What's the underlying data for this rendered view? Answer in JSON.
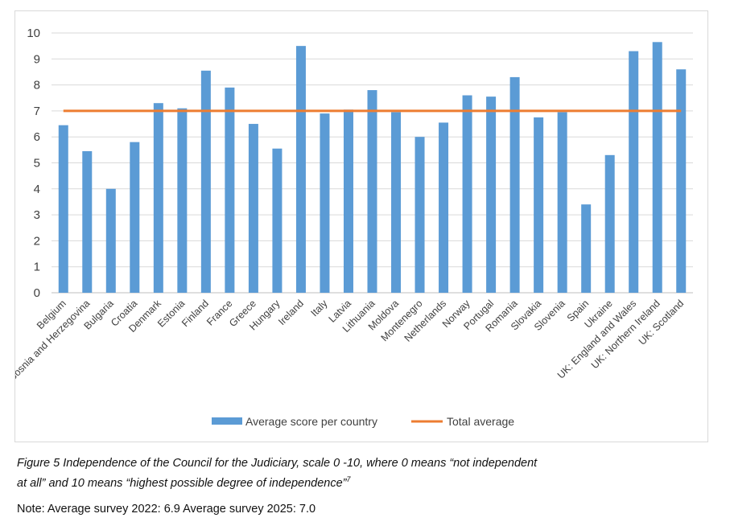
{
  "chart_data": {
    "type": "bar",
    "title": "",
    "xlabel": "",
    "ylabel": "",
    "ylim": [
      0,
      10
    ],
    "yticks": [
      "0",
      "1",
      "2",
      "3",
      "4",
      "5",
      "6",
      "7",
      "8",
      "9",
      "10"
    ],
    "grid": true,
    "legend_position": "bottom",
    "categories": [
      "Belgium",
      "Bosnia and Herzegovina",
      "Bulgaria",
      "Croatia",
      "Denmark",
      "Estonia",
      "Finland",
      "France",
      "Greece",
      "Hungary",
      "Ireland",
      "Italy",
      "Latvia",
      "Lithuania",
      "Moldova",
      "Montenegro",
      "Netherlands",
      "Norway",
      "Portugal",
      "Romania",
      "Slovakia",
      "Slovenia",
      "Spain",
      "Ukraine",
      "UK: England and Wales",
      "UK: Northern Ireland",
      "UK: Scotland"
    ],
    "series": [
      {
        "name": "Average score per country",
        "type": "bar",
        "color": "#5b9bd5",
        "values": [
          6.45,
          5.45,
          4.0,
          5.8,
          7.3,
          7.1,
          8.55,
          7.9,
          6.5,
          5.55,
          9.5,
          6.9,
          7.05,
          7.8,
          6.95,
          6.0,
          6.55,
          7.6,
          7.55,
          8.3,
          6.75,
          6.95,
          3.4,
          5.3,
          9.3,
          9.65,
          8.6
        ]
      },
      {
        "name": "Total average",
        "type": "line",
        "color": "#ed7d31",
        "value": 7.0
      }
    ]
  },
  "caption": {
    "line1": "Figure 5  Independence of the Council for the Judiciary, scale 0 -10, where 0 means “not independent",
    "line2": "at all” and 10 means “highest possible degree of independence”",
    "footnote_mark": "7"
  },
  "note": "Note: Average survey 2022: 6.9 Average survey 2025: 7.0"
}
